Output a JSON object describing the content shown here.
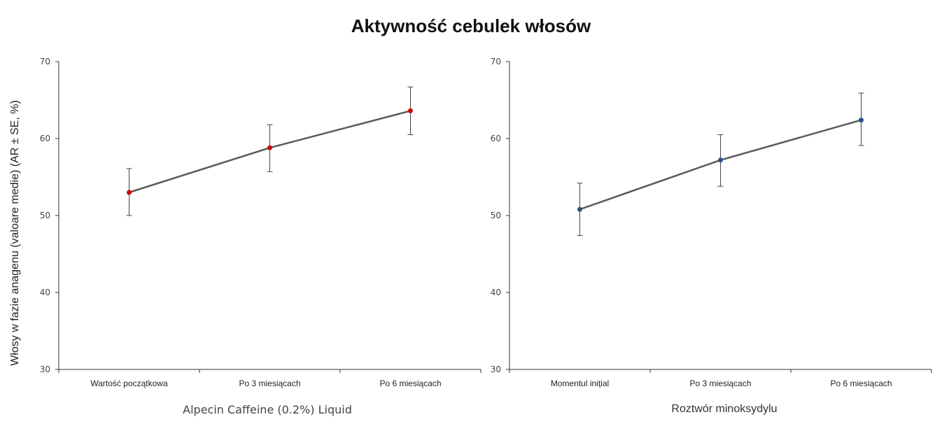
{
  "title": "Aktywność cebulek włosów",
  "ylabel": "Włosy w fazie anagenu  (valoare medie) (AR ± SE, %)",
  "chart_data": [
    {
      "type": "line",
      "xlabel": "Alpecin Caffeine (0.2%) Liquid",
      "categories": [
        "Wartość początkowa",
        "Po 3 miesiącach",
        "Po 6 miesiącach"
      ],
      "values": [
        53.0,
        58.8,
        63.6
      ],
      "error_low": [
        50.0,
        55.7,
        60.5
      ],
      "error_high": [
        56.1,
        61.8,
        66.7
      ],
      "ylim": [
        30,
        70
      ],
      "yticks": [
        30,
        40,
        50,
        60,
        70
      ],
      "marker_color": "#cc0000",
      "line_color": "#595959"
    },
    {
      "type": "line",
      "xlabel": "Roztwór minoksydylu",
      "categories": [
        "Momentul inițial",
        "Po 3 miesiącach",
        "Po 6 miesiącach"
      ],
      "values": [
        50.8,
        57.2,
        62.4
      ],
      "error_low": [
        47.4,
        53.8,
        59.1
      ],
      "error_high": [
        54.2,
        60.5,
        65.9
      ],
      "ylim": [
        30,
        70
      ],
      "yticks": [
        30,
        40,
        50,
        60,
        70
      ],
      "marker_color": "#2e4f85",
      "line_color": "#595959"
    }
  ]
}
